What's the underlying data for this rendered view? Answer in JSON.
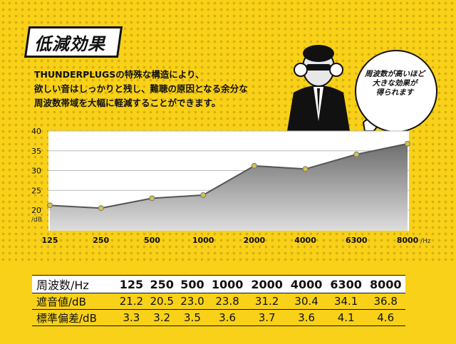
{
  "title": "低減効果",
  "intro_lines": [
    "THUNDERPLUGSの特殊な構造により、",
    "欲しい音はしっかりと残し、難聴の原因となる余分な",
    "周波数帯域を大幅に軽減することができます。"
  ],
  "bubble_lines": [
    "周波数が高いほど",
    "大きな効果が",
    "得られます"
  ],
  "colors": {
    "background": "#f8d118",
    "line": "#555555",
    "area_top": "#6e6e6e",
    "area_bottom": "#d8d8d8",
    "point": "#d9c24a"
  },
  "chart_data": {
    "type": "area",
    "categories": [
      "125",
      "250",
      "500",
      "1000",
      "2000",
      "4000",
      "6300",
      "8000"
    ],
    "series": [
      {
        "values": [
          21.2,
          20.5,
          23.0,
          23.8,
          31.2,
          30.4,
          34.1,
          36.8
        ]
      }
    ],
    "ylim": [
      20,
      40
    ],
    "y_ticks": [
      "20",
      "25",
      "30",
      "35",
      "40"
    ],
    "y_unit": "/dB",
    "x_unit": "/Hz",
    "grid": true
  },
  "table": {
    "header": [
      "周波数/Hz",
      "125",
      "250",
      "500",
      "1000",
      "2000",
      "4000",
      "6300",
      "8000"
    ],
    "rows": [
      [
        "遮音値/dB",
        "21.2",
        "20.5",
        "23.0",
        "23.8",
        "31.2",
        "30.4",
        "34.1",
        "36.8"
      ],
      [
        "標準偏差/dB",
        "3.3",
        "3.2",
        "3.5",
        "3.6",
        "3.7",
        "3.6",
        "4.1",
        "4.6"
      ]
    ]
  }
}
